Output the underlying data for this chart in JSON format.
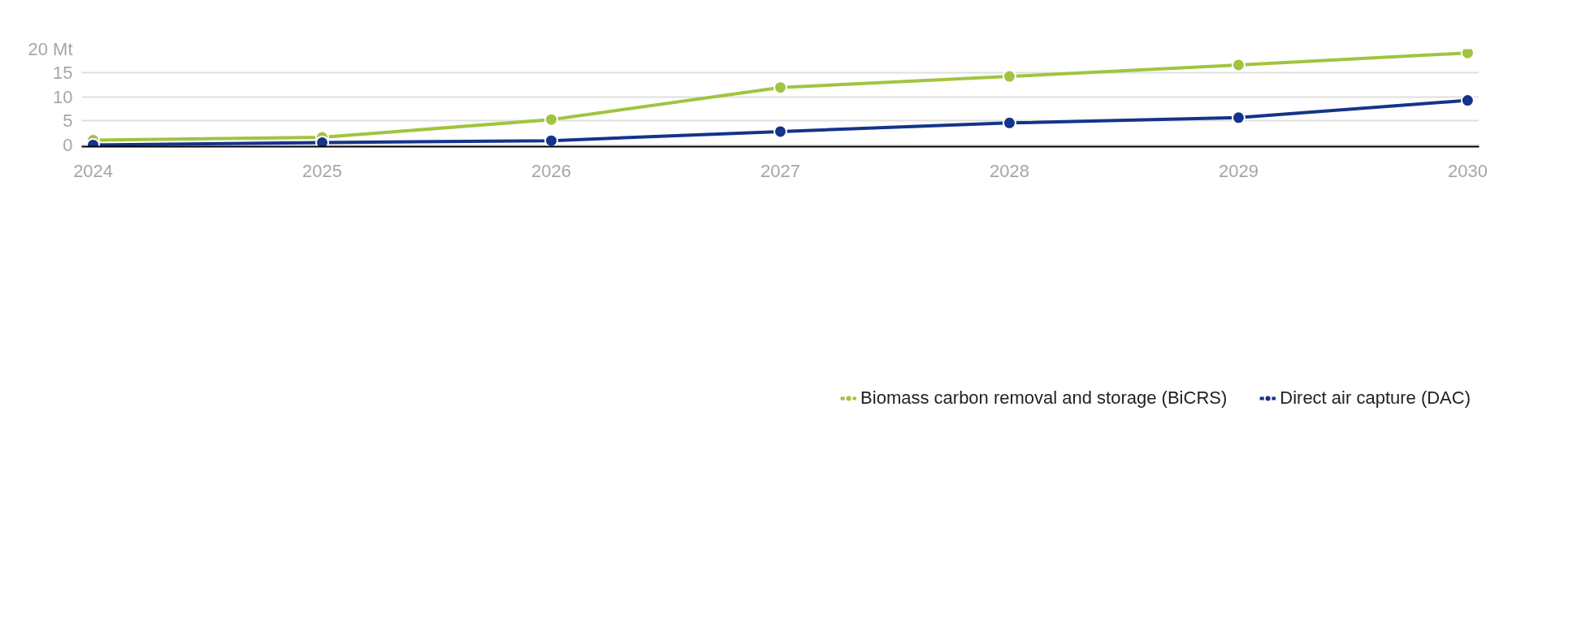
{
  "chart_data": {
    "type": "line",
    "x": [
      2024,
      2025,
      2026,
      2027,
      2028,
      2029,
      2030
    ],
    "series": [
      {
        "name": "Biomass carbon removal and storage (BiCRS)",
        "color": "#a1c43f",
        "values": [
          1.0,
          1.6,
          5.3,
          12.0,
          14.3,
          16.7,
          19.2
        ]
      },
      {
        "name": "Direct air capture (DAC)",
        "color": "#14338a",
        "values": [
          0,
          0.5,
          0.9,
          2.8,
          4.6,
          5.7,
          9.3
        ]
      }
    ],
    "xlim": [
      2023.95,
      2030.05
    ],
    "xticks": [
      2024,
      2025,
      2026,
      2027,
      2028,
      2029,
      2030
    ],
    "ylim": [
      -0.35,
      20
    ],
    "yticks": [
      0,
      5,
      10,
      15,
      {
        "value": 20,
        "label": "20 Mt"
      }
    ],
    "grid": "y",
    "legend": "bottom",
    "marker": "circle",
    "line_style": "solid"
  }
}
